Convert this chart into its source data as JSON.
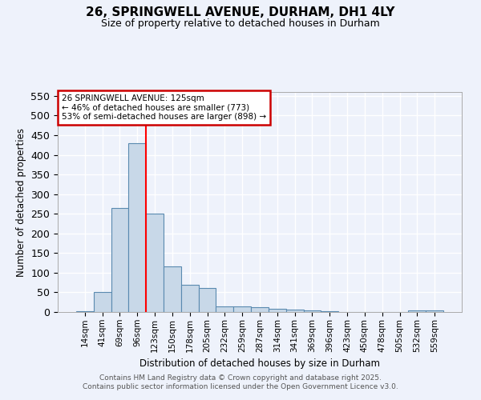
{
  "title_line1": "26, SPRINGWELL AVENUE, DURHAM, DH1 4LY",
  "title_line2": "Size of property relative to detached houses in Durham",
  "xlabel": "Distribution of detached houses by size in Durham",
  "ylabel": "Number of detached properties",
  "bar_labels": [
    "14sqm",
    "41sqm",
    "69sqm",
    "96sqm",
    "123sqm",
    "150sqm",
    "178sqm",
    "205sqm",
    "232sqm",
    "259sqm",
    "287sqm",
    "314sqm",
    "341sqm",
    "369sqm",
    "396sqm",
    "423sqm",
    "450sqm",
    "478sqm",
    "505sqm",
    "532sqm",
    "559sqm"
  ],
  "bar_values": [
    3,
    50,
    265,
    430,
    250,
    117,
    70,
    62,
    15,
    15,
    12,
    8,
    7,
    5,
    3,
    1,
    0,
    1,
    0,
    5,
    4
  ],
  "bar_color": "#c8d8e8",
  "bar_edge_color": "#5a8ab0",
  "background_color": "#eef2fb",
  "grid_color": "#ffffff",
  "red_line_index": 4,
  "annotation_text": "26 SPRINGWELL AVENUE: 125sqm\n← 46% of detached houses are smaller (773)\n53% of semi-detached houses are larger (898) →",
  "annotation_box_color": "#ffffff",
  "annotation_box_edge_color": "#cc0000",
  "ylim": [
    0,
    560
  ],
  "yticks": [
    0,
    50,
    100,
    150,
    200,
    250,
    300,
    350,
    400,
    450,
    500,
    550
  ],
  "footer_line1": "Contains HM Land Registry data © Crown copyright and database right 2025.",
  "footer_line2": "Contains public sector information licensed under the Open Government Licence v3.0."
}
